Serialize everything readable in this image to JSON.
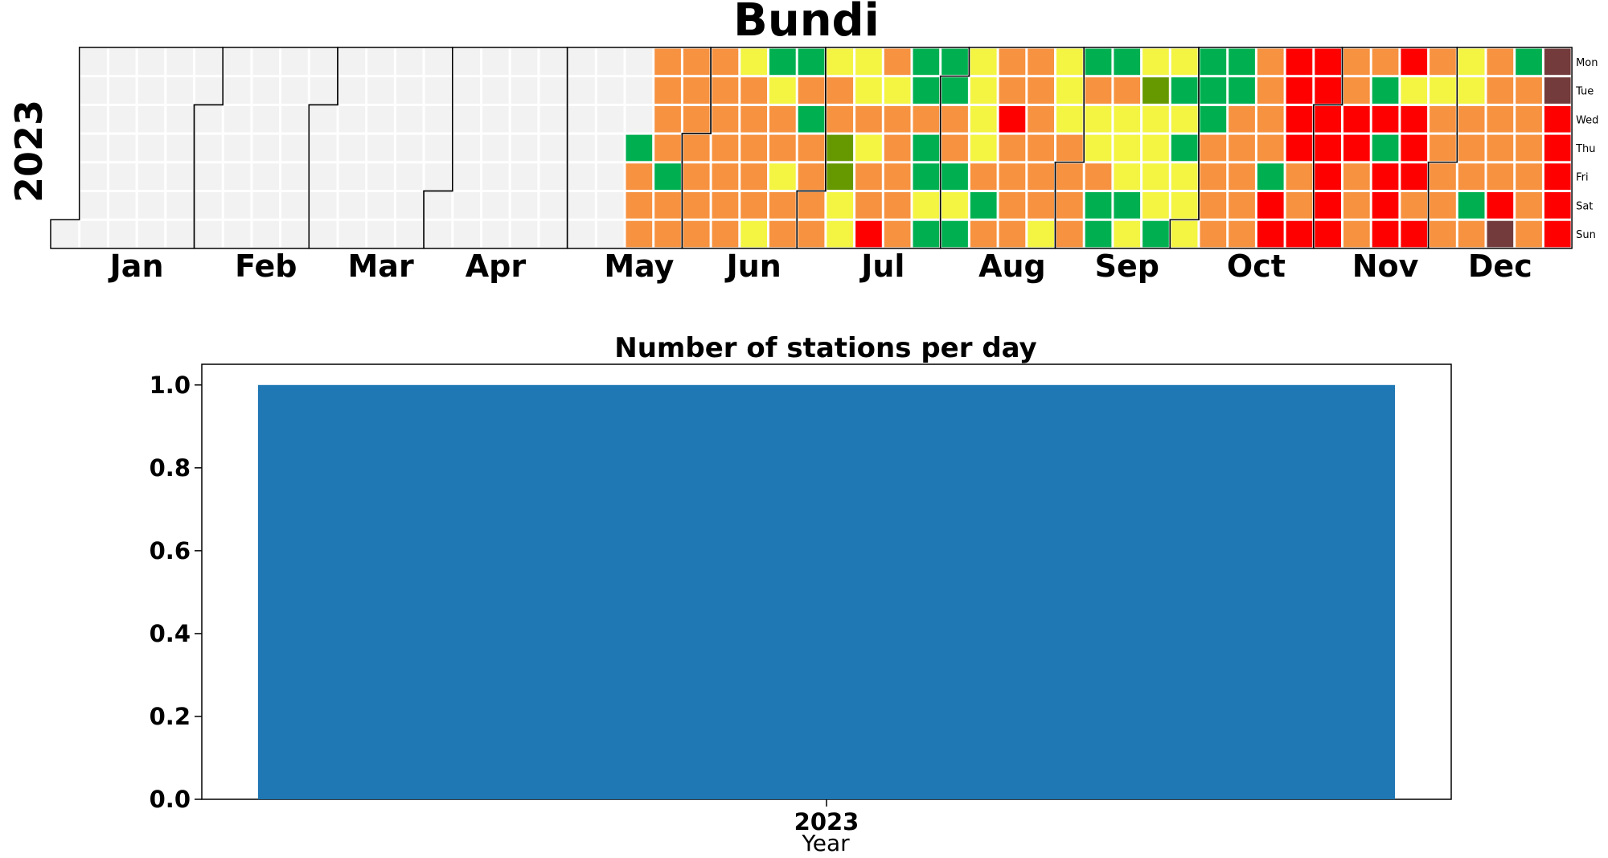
{
  "chart_data": [
    {
      "type": "heatmap",
      "title": "Bundi",
      "year_label": "2023",
      "weekday_labels": [
        "Mon",
        "Tue",
        "Wed",
        "Thu",
        "Fri",
        "Sat",
        "Sun"
      ],
      "month_labels": [
        "Jan",
        "Feb",
        "Mar",
        "Apr",
        "May",
        "Jun",
        "Jul",
        "Aug",
        "Sep",
        "Oct",
        "Nov",
        "Dec"
      ],
      "legend": "none",
      "colors": {
        "empty": "#f2f2f2",
        "G": "#00b050",
        "L": "#669900",
        "Y": "#f3f542",
        "O": "#f79240",
        "R": "#ff0000",
        "M": "#733b3b"
      },
      "weeks": [
        "......E",
        "EEEEEEE",
        "EEEEEEE",
        "EEEEEEE",
        "EEEEEEE",
        "EEEEEEE",
        "EEEEEEE",
        "EEEEEEE",
        "EEEEEEE",
        "EEEEEEE",
        "EEEEEEE",
        "EEEEEEE",
        "EEEEEEE",
        "EEEEEEE",
        "EEEEEEE",
        "EEEEEEE",
        "EEEEEEE",
        "EEEEEEE",
        "EEEEEEE",
        "EEEEEEE",
        "EEEGOOO",
        "OOOOGOO",
        "OOOOOOO",
        "OOOOOOO",
        "YOOOOOY",
        "GYOOYOO",
        "GOGOOOO",
        "YOOLLYY",
        "YYOYOOR",
        "OYOOOOO",
        "GGOGGYG",
        "GGOOGYG",
        "YYYYOGO",
        "OOROOOO",
        "OOOOOOY",
        "YYYOOOO",
        "GOYYOGG",
        "GOYYYGY",
        "YLYYYYG",
        "YGYGYYY",
        "GGGOOOO",
        "GGOOOOO",
        "OOOOGRR",
        "RRRROOR",
        "RRRRRRR",
        "OORROOO",
        "OGRGRRR",
        "RYRRROR",
        "OYOOOOO",
        "YYOOOGO",
        "OOOOORM",
        "GOOOOOO",
        "MMRRRRR"
      ]
    },
    {
      "type": "bar",
      "title": "Number of stations per day",
      "categories": [
        "2023"
      ],
      "values": [
        1.0
      ],
      "xlabel": "Year",
      "ylabel": "",
      "ylim": [
        0,
        1.05
      ],
      "yticks": [
        "0.0",
        "0.2",
        "0.4",
        "0.6",
        "0.8",
        "1.0"
      ],
      "bar_color": "#1f77b4"
    }
  ]
}
